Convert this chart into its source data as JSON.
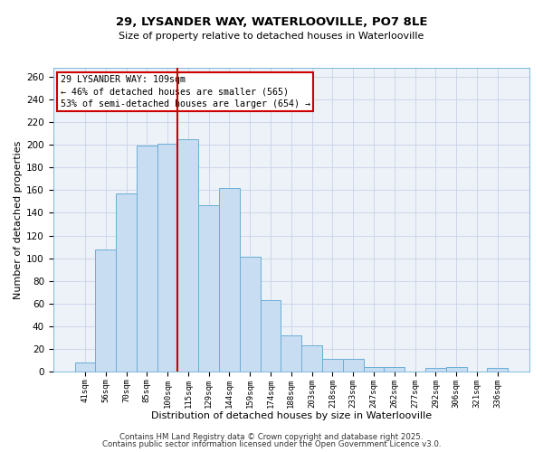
{
  "title": "29, LYSANDER WAY, WATERLOOVILLE, PO7 8LE",
  "subtitle": "Size of property relative to detached houses in Waterlooville",
  "xlabel": "Distribution of detached houses by size in Waterlooville",
  "ylabel": "Number of detached properties",
  "bar_labels": [
    "41sqm",
    "56sqm",
    "70sqm",
    "85sqm",
    "100sqm",
    "115sqm",
    "129sqm",
    "144sqm",
    "159sqm",
    "174sqm",
    "188sqm",
    "203sqm",
    "218sqm",
    "233sqm",
    "247sqm",
    "262sqm",
    "277sqm",
    "292sqm",
    "306sqm",
    "321sqm",
    "336sqm"
  ],
  "bar_values": [
    8,
    108,
    157,
    199,
    201,
    205,
    147,
    162,
    101,
    63,
    32,
    23,
    11,
    11,
    4,
    4,
    0,
    3,
    4,
    0,
    3
  ],
  "bar_color": "#c9ddf2",
  "bar_edge_color": "#6aaed6",
  "grid_color": "#c8d4e8",
  "background_color": "#edf1f8",
  "vline_color": "#cc0000",
  "annotation_text": "29 LYSANDER WAY: 109sqm\n← 46% of detached houses are smaller (565)\n53% of semi-detached houses are larger (654) →",
  "annotation_box_color": "white",
  "annotation_box_edge": "#cc0000",
  "ylim": [
    0,
    268
  ],
  "yticks": [
    0,
    20,
    40,
    60,
    80,
    100,
    120,
    140,
    160,
    180,
    200,
    220,
    240,
    260
  ],
  "footer1": "Contains HM Land Registry data © Crown copyright and database right 2025.",
  "footer2": "Contains public sector information licensed under the Open Government Licence v3.0."
}
